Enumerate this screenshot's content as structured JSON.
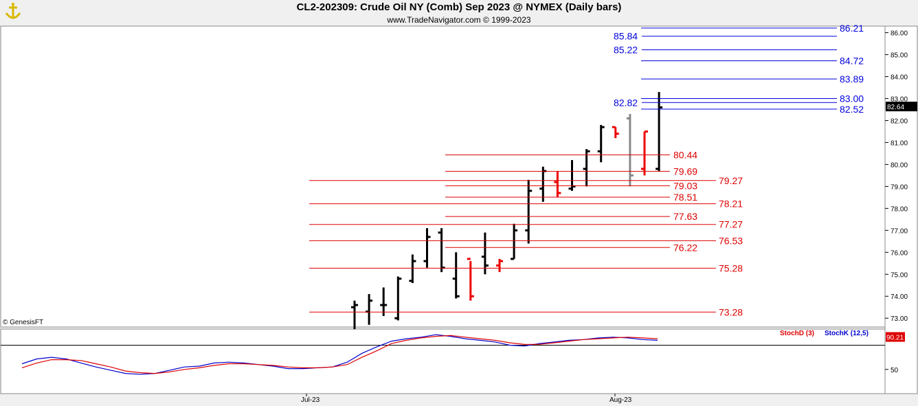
{
  "header": {
    "title": "CL2-202309:  Crude Oil NY (Comb) Sep 2023 @ NYMEX  (Daily bars)",
    "subtitle": "www.TradeNavigator.com © 1999-2023",
    "logo_icon": "anchor-logo-icon"
  },
  "watermark": "© GenesisFT",
  "colors": {
    "up_bar": "#000000",
    "down_bar": "#ee0000",
    "neutral_bar": "#888888",
    "blue_level": "#0000dd",
    "red_level": "#dd0000",
    "stoch_d": "#dd0000",
    "stoch_k": "#0000cc"
  },
  "chart_data": [
    {
      "type": "bar",
      "subtype": "ohlc",
      "title": "CL2-202309:  Crude Oil NY (Comb) Sep 2023 @ NYMEX  (Daily bars)",
      "ylim": [
        72.6,
        86.3
      ],
      "y_ticks": [
        "86.00",
        "85.00",
        "84.00",
        "83.00",
        "82.00",
        "81.00",
        "80.00",
        "79.00",
        "78.00",
        "77.00",
        "76.00",
        "75.00",
        "74.00",
        "73.00"
      ],
      "x_tick_labels": [
        {
          "label": "Jul-23",
          "index": 0
        },
        {
          "label": "Aug-23",
          "index": 0
        }
      ],
      "last_price": "82.64",
      "bars": [
        {
          "o": 73.5,
          "h": 73.8,
          "l": 72.5,
          "c": 73.6,
          "color": "up"
        },
        {
          "o": 73.3,
          "h": 74.1,
          "l": 72.7,
          "c": 73.8,
          "color": "up"
        },
        {
          "o": 73.6,
          "h": 74.4,
          "l": 73.1,
          "c": 73.6,
          "color": "up"
        },
        {
          "o": 73.0,
          "h": 74.9,
          "l": 72.9,
          "c": 74.8,
          "color": "up"
        },
        {
          "o": 74.7,
          "h": 75.9,
          "l": 74.6,
          "c": 75.6,
          "color": "up"
        },
        {
          "o": 75.6,
          "h": 77.1,
          "l": 75.3,
          "c": 76.7,
          "color": "up"
        },
        {
          "o": 76.9,
          "h": 77.1,
          "l": 75.1,
          "c": 75.3,
          "color": "up"
        },
        {
          "o": 74.8,
          "h": 76.0,
          "l": 73.9,
          "c": 74.0,
          "color": "up"
        },
        {
          "o": 75.7,
          "h": 75.6,
          "l": 73.8,
          "c": 74.0,
          "color": "down"
        },
        {
          "o": 75.8,
          "h": 76.9,
          "l": 75.0,
          "c": 75.4,
          "color": "up"
        },
        {
          "o": 75.4,
          "h": 75.7,
          "l": 75.1,
          "c": 75.6,
          "color": "down"
        },
        {
          "o": 75.7,
          "h": 77.3,
          "l": 75.7,
          "c": 77.0,
          "color": "up"
        },
        {
          "o": 77.0,
          "h": 79.3,
          "l": 76.4,
          "c": 78.8,
          "color": "up"
        },
        {
          "o": 78.9,
          "h": 79.9,
          "l": 78.3,
          "c": 79.7,
          "color": "up"
        },
        {
          "o": 79.2,
          "h": 79.7,
          "l": 78.5,
          "c": 78.7,
          "color": "down"
        },
        {
          "o": 78.9,
          "h": 80.2,
          "l": 78.8,
          "c": 79.0,
          "color": "up"
        },
        {
          "o": 79.8,
          "h": 80.7,
          "l": 79.0,
          "c": 80.6,
          "color": "up"
        },
        {
          "o": 80.6,
          "h": 81.8,
          "l": 80.1,
          "c": 81.7,
          "color": "up"
        },
        {
          "o": 81.7,
          "h": 81.7,
          "l": 81.2,
          "c": 81.4,
          "color": "down"
        },
        {
          "o": 82.1,
          "h": 82.3,
          "l": 79.0,
          "c": 79.5,
          "color": "neutral"
        },
        {
          "o": 79.8,
          "h": 81.5,
          "l": 79.5,
          "c": 81.5,
          "color": "down"
        },
        {
          "o": 79.8,
          "h": 83.3,
          "l": 79.7,
          "c": 82.6,
          "color": "up"
        }
      ],
      "blue_levels": [
        {
          "value": 86.21,
          "label": "86.21",
          "label_side": "right"
        },
        {
          "value": 85.84,
          "label": "85.84",
          "label_side": "left"
        },
        {
          "value": 85.22,
          "label": "85.22",
          "label_side": "left"
        },
        {
          "value": 84.72,
          "label": "84.72",
          "label_side": "right"
        },
        {
          "value": 83.89,
          "label": "83.89",
          "label_side": "right"
        },
        {
          "value": 83.0,
          "label": "83.00",
          "label_side": "right"
        },
        {
          "value": 82.82,
          "label": "82.82",
          "label_side": "left"
        },
        {
          "value": 82.52,
          "label": "82.52",
          "label_side": "right"
        }
      ],
      "red_levels": [
        {
          "value": 80.44,
          "label": "80.44",
          "group": "short"
        },
        {
          "value": 79.69,
          "label": "79.69",
          "group": "short"
        },
        {
          "value": 79.27,
          "label": "79.27",
          "group": "long"
        },
        {
          "value": 79.03,
          "label": "79.03",
          "group": "short"
        },
        {
          "value": 78.51,
          "label": "78.51",
          "group": "short"
        },
        {
          "value": 78.21,
          "label": "78.21",
          "group": "long"
        },
        {
          "value": 77.63,
          "label": "77.63",
          "group": "short"
        },
        {
          "value": 77.27,
          "label": "77.27",
          "group": "long"
        },
        {
          "value": 76.53,
          "label": "76.53",
          "group": "long"
        },
        {
          "value": 76.22,
          "label": "76.22",
          "group": "short"
        },
        {
          "value": 75.28,
          "label": "75.28",
          "group": "long"
        },
        {
          "value": 73.28,
          "label": "73.28",
          "group": "long"
        }
      ]
    },
    {
      "type": "line",
      "title": "",
      "ylim": [
        20,
        100
      ],
      "y_ticks": [
        "50"
      ],
      "reference_line": 80,
      "last_value": "90.21",
      "legend": [
        {
          "name": "StochD (3)",
          "color": "stoch_d"
        },
        {
          "name": "StochK (12,5)",
          "color": "stoch_k"
        }
      ],
      "series": [
        {
          "name": "StochK (12,5)",
          "values": [
            57,
            63,
            65,
            63,
            58,
            53,
            49,
            45,
            44,
            45,
            49,
            53,
            54,
            58,
            59,
            58,
            56,
            54,
            51,
            51,
            52,
            53,
            59,
            70,
            78,
            85,
            88,
            90,
            93,
            91,
            88,
            86,
            84,
            80,
            79,
            82,
            84,
            86,
            87,
            89,
            90,
            89,
            87,
            86
          ]
        },
        {
          "name": "StochD (3)",
          "values": [
            52,
            58,
            62,
            62,
            61,
            57,
            53,
            48,
            46,
            45,
            47,
            50,
            52,
            55,
            57,
            57,
            56,
            55,
            53,
            52,
            52,
            53,
            56,
            65,
            73,
            82,
            86,
            89,
            91,
            92,
            90,
            88,
            86,
            83,
            81,
            81,
            83,
            85,
            87,
            88,
            89,
            90,
            89,
            88
          ]
        }
      ]
    }
  ]
}
